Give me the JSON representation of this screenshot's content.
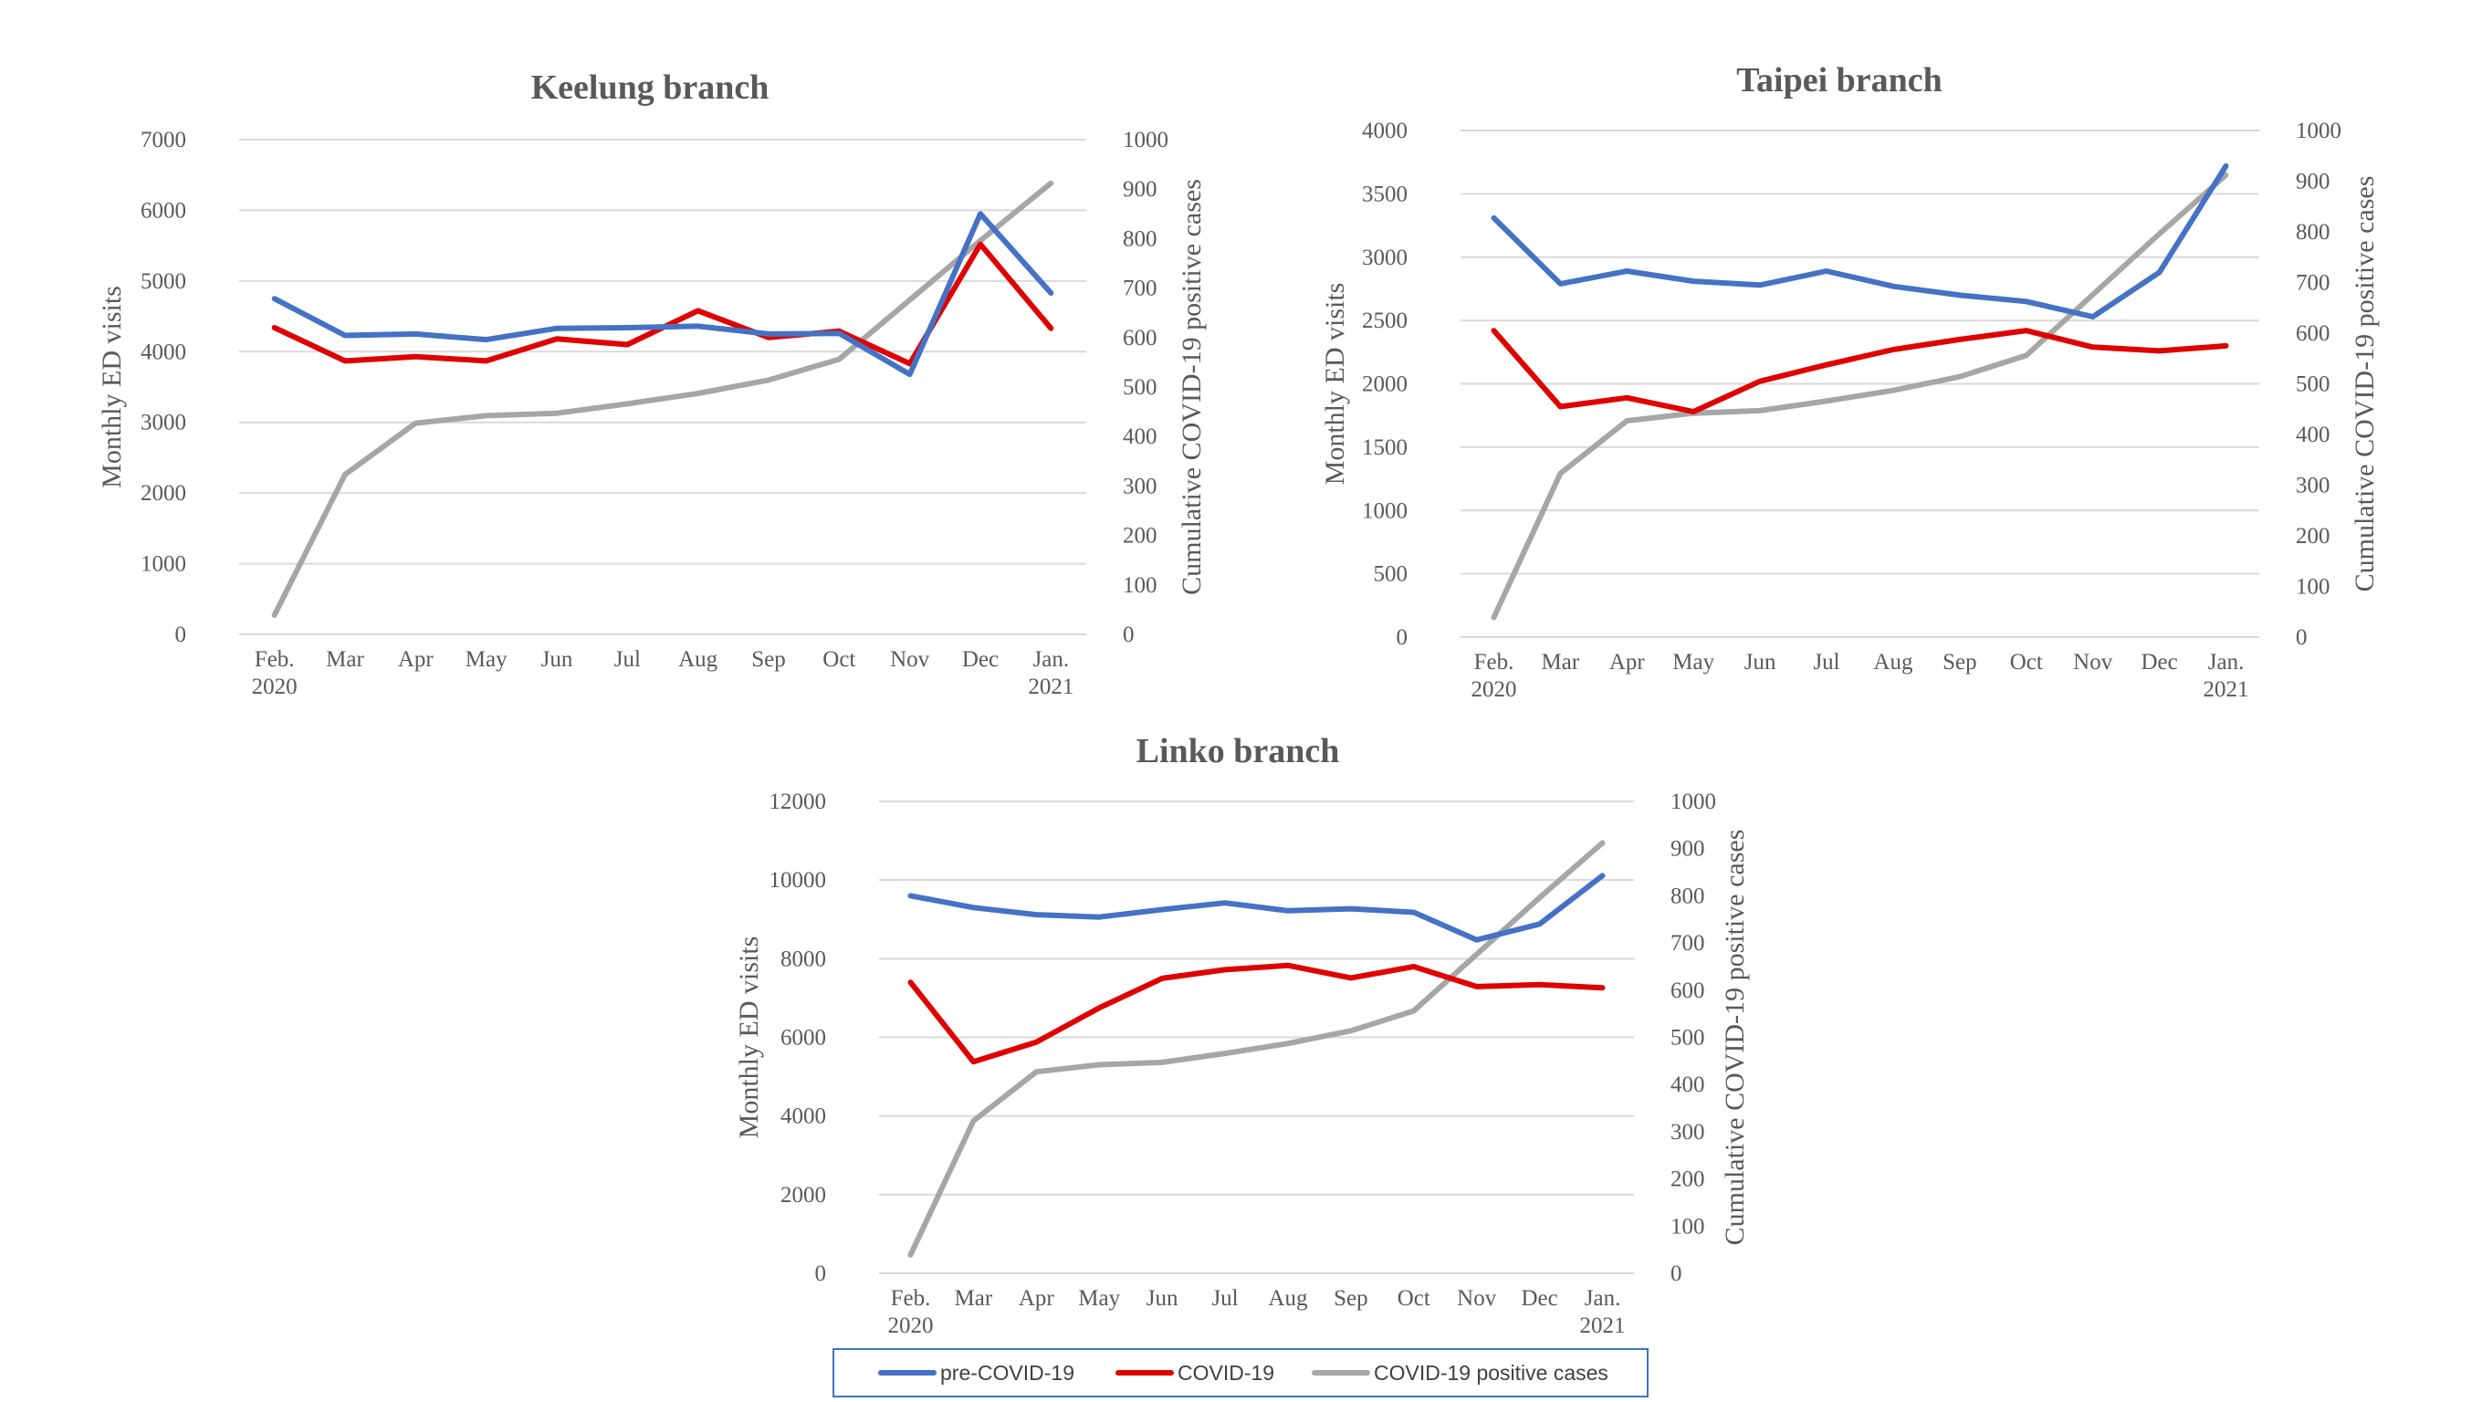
{
  "chart_data": [
    {
      "type": "line",
      "title": "Keelung branch",
      "categories": [
        "Feb.\n2020",
        "Mar",
        "Apr",
        "May",
        "Jun",
        "Jul",
        "Aug",
        "Sep",
        "Oct",
        "Nov",
        "Dec",
        "Jan.\n2021"
      ],
      "ylabel": "Monthly ED visits",
      "y2label": "Cumulative COVID-19 positive cases",
      "ylim": [
        0,
        7000
      ],
      "yticks": [
        0,
        1000,
        2000,
        3000,
        4000,
        5000,
        6000,
        7000
      ],
      "y2lim": [
        0,
        1000
      ],
      "y2ticks": [
        0,
        100,
        200,
        300,
        400,
        500,
        600,
        700,
        800,
        900,
        1000
      ],
      "grid": true,
      "series": [
        {
          "name": "pre-COVID-19",
          "axis": "left",
          "color": "#4472c4",
          "values": [
            4750,
            4230,
            4250,
            4170,
            4330,
            4340,
            4360,
            4250,
            4260,
            3680,
            5950,
            4830
          ]
        },
        {
          "name": "COVID-19",
          "axis": "left",
          "color": "#e00000",
          "values": [
            4340,
            3870,
            3930,
            3870,
            4180,
            4100,
            4580,
            4200,
            4290,
            3830,
            5520,
            4330
          ]
        },
        {
          "name": "COVID-19 positive cases",
          "axis": "right",
          "color": "#a6a6a6",
          "values": [
            39,
            323,
            427,
            442,
            447,
            466,
            487,
            514,
            556,
            676,
            796,
            912
          ]
        }
      ]
    },
    {
      "type": "line",
      "title": "Taipei branch",
      "categories": [
        "Feb.\n2020",
        "Mar",
        "Apr",
        "May",
        "Jun",
        "Jul",
        "Aug",
        "Sep",
        "Oct",
        "Nov",
        "Dec",
        "Jan.\n2021"
      ],
      "ylabel": "Monthly ED visits",
      "y2label": "Cumulative COVID-19 positive cases",
      "ylim": [
        0,
        4000
      ],
      "yticks": [
        0,
        500,
        1000,
        1500,
        2000,
        2500,
        3000,
        3500,
        4000
      ],
      "y2lim": [
        0,
        1000
      ],
      "y2ticks": [
        0,
        100,
        200,
        300,
        400,
        500,
        600,
        700,
        800,
        900,
        1000
      ],
      "grid": true,
      "series": [
        {
          "name": "pre-COVID-19",
          "axis": "left",
          "color": "#4472c4",
          "values": [
            3310,
            2790,
            2890,
            2810,
            2780,
            2890,
            2770,
            2700,
            2650,
            2530,
            2880,
            3720
          ]
        },
        {
          "name": "COVID-19",
          "axis": "left",
          "color": "#e00000",
          "values": [
            2420,
            1820,
            1890,
            1780,
            2020,
            2150,
            2270,
            2350,
            2420,
            2290,
            2260,
            2300
          ]
        },
        {
          "name": "COVID-19 positive cases",
          "axis": "right",
          "color": "#a6a6a6",
          "values": [
            39,
            323,
            427,
            442,
            447,
            466,
            487,
            514,
            556,
            676,
            796,
            912
          ]
        }
      ]
    },
    {
      "type": "line",
      "title": "Linko branch",
      "categories": [
        "Feb.\n2020",
        "Mar",
        "Apr",
        "May",
        "Jun",
        "Jul",
        "Aug",
        "Sep",
        "Oct",
        "Nov",
        "Dec",
        "Jan.\n2021"
      ],
      "ylabel": "Monthly ED visits",
      "y2label": "Cumulative COVID-19 positive cases",
      "ylim": [
        0,
        12000
      ],
      "yticks": [
        0,
        2000,
        4000,
        6000,
        8000,
        10000,
        12000
      ],
      "y2lim": [
        0,
        1000
      ],
      "y2ticks": [
        0,
        100,
        200,
        300,
        400,
        500,
        600,
        700,
        800,
        900,
        1000
      ],
      "grid": true,
      "series": [
        {
          "name": "pre-COVID-19",
          "axis": "left",
          "color": "#4472c4",
          "values": [
            9600,
            9300,
            9120,
            9060,
            9250,
            9420,
            9220,
            9270,
            9180,
            8480,
            8880,
            10110
          ]
        },
        {
          "name": "COVID-19",
          "axis": "left",
          "color": "#e00000",
          "values": [
            7400,
            5380,
            5880,
            6750,
            7500,
            7720,
            7830,
            7510,
            7800,
            7290,
            7340,
            7260
          ]
        },
        {
          "name": "COVID-19 positive cases",
          "axis": "right",
          "color": "#a6a6a6",
          "values": [
            39,
            323,
            427,
            442,
            447,
            466,
            487,
            514,
            556,
            676,
            796,
            912
          ]
        }
      ]
    }
  ],
  "legend": {
    "placement": "bottom",
    "items": [
      {
        "label": "pre-COVID-19",
        "color": "#4472c4"
      },
      {
        "label": "COVID-19",
        "color": "#e00000"
      },
      {
        "label": "COVID-19 positive cases",
        "color": "#a6a6a6"
      }
    ]
  }
}
